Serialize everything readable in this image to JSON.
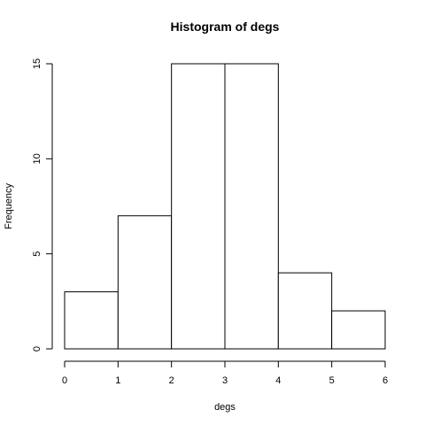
{
  "chart_data": {
    "type": "bar",
    "title": "Histogram of degs",
    "xlabel": "degs",
    "ylabel": "Frequency",
    "bins": [
      {
        "from": 0,
        "to": 1,
        "count": 3
      },
      {
        "from": 1,
        "to": 2,
        "count": 7
      },
      {
        "from": 2,
        "to": 3,
        "count": 15
      },
      {
        "from": 3,
        "to": 4,
        "count": 15
      },
      {
        "from": 4,
        "to": 5,
        "count": 4
      },
      {
        "from": 5,
        "to": 6,
        "count": 2
      }
    ],
    "xticks": [
      0,
      1,
      2,
      3,
      4,
      5,
      6
    ],
    "yticks": [
      0,
      5,
      10,
      15
    ],
    "xlim": [
      0,
      6
    ],
    "ylim": [
      0,
      15
    ],
    "grid": false,
    "legend": "none",
    "bar_fill": "#ffffff",
    "bar_stroke": "#000000"
  }
}
